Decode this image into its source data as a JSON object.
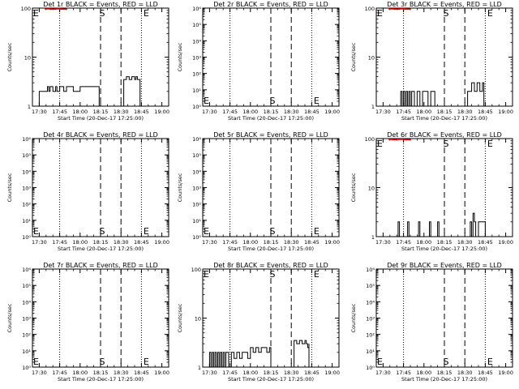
{
  "figure": {
    "x_tick_labels": [
      "17:30",
      "17:45",
      "18:00",
      "18:15",
      "18:30",
      "18:45",
      "19:00"
    ],
    "xlabel": "Start Time (20-Dec-17 17:25:00)",
    "ylabel": "Counts/sec",
    "markers": [
      "S",
      "E"
    ],
    "colors": {
      "events": "#000000",
      "lld": "#ff0000"
    }
  },
  "chart_data": [
    {
      "type": "line",
      "title": "Det 1r BLACK = Events, RED = LLD",
      "ylabel": "Counts/sec",
      "xlabel": "Start Time (20-Dec-17 17:25:00)",
      "y_scale": "log",
      "y_tick_labels": [
        "1",
        "10",
        "100"
      ],
      "ylim": [
        1,
        100
      ],
      "xlim": [
        "17:25",
        "19:05"
      ],
      "x_tick_labels": [
        "17:30",
        "17:45",
        "18:00",
        "18:15",
        "18:30",
        "18:45",
        "19:00"
      ],
      "dotted_lines": [
        "17:45",
        "18:45"
      ],
      "dashed_lines": [
        "18:15",
        "18:30"
      ],
      "markers": {
        "S": "18:15",
        "E": "18:45"
      },
      "series": [
        {
          "color": "black",
          "x": [
            "17:25",
            "17:29",
            "17:30",
            "17:35",
            "17:36",
            "17:37",
            "17:38",
            "17:40",
            "17:42",
            "17:43",
            "17:45",
            "17:48",
            "17:50",
            "17:52",
            "17:55",
            "18:00",
            "18:05",
            "18:10",
            "18:13",
            "18:14",
            "18:15",
            "18:31",
            "18:32",
            "18:34",
            "18:36",
            "18:38",
            "18:40",
            "18:41",
            "18:42",
            "18:44"
          ],
          "y": [
            1,
            1,
            2,
            2,
            2.5,
            2,
            2.5,
            2,
            2.5,
            2,
            2.5,
            2,
            2.5,
            2.5,
            2,
            2.5,
            2.5,
            2.5,
            2.5,
            1,
            1,
            1,
            3.5,
            4,
            3.5,
            4,
            3.5,
            4,
            3.5,
            1
          ]
        },
        {
          "color": "red",
          "x": [
            "17:34",
            "17:38",
            "17:42",
            "17:46",
            "17:50"
          ],
          "y": [
            100,
            95,
            97,
            95,
            100
          ]
        }
      ]
    },
    {
      "type": "line",
      "title": "Det 2r BLACK = Events, RED = LLD",
      "ylabel": "Counts/sec",
      "xlabel": "Start Time (20-Dec-17 17:25:00)",
      "y_scale": "log",
      "y_tick_labels": [
        "10⁰",
        "10¹",
        "10²",
        "10³",
        "10⁴",
        "10⁵",
        "10⁶"
      ],
      "ylim": [
        1,
        1000000
      ],
      "xlim": [
        "17:25",
        "19:05"
      ],
      "x_tick_labels": [
        "17:30",
        "17:45",
        "18:00",
        "18:15",
        "18:30",
        "18:45",
        "19:00"
      ],
      "dotted_lines": [
        "17:45",
        "18:45"
      ],
      "dashed_lines": [
        "18:15",
        "18:30"
      ],
      "markers": {
        "S": "18:15",
        "E": "18:45"
      },
      "series": []
    },
    {
      "type": "line",
      "title": "Det 3r BLACK = Events, RED = LLD",
      "ylabel": "Counts/sec",
      "xlabel": "Start Time (20-Dec-17 17:25:00)",
      "y_scale": "log",
      "y_tick_labels": [
        "1",
        "10",
        "100"
      ],
      "ylim": [
        1,
        100
      ],
      "xlim": [
        "17:25",
        "19:05"
      ],
      "x_tick_labels": [
        "17:30",
        "17:45",
        "18:00",
        "18:15",
        "18:30",
        "18:45",
        "19:00"
      ],
      "dotted_lines": [
        "17:45",
        "18:45"
      ],
      "dashed_lines": [
        "18:15",
        "18:30"
      ],
      "markers": {
        "S": "18:15",
        "E": "18:45"
      },
      "series": [
        {
          "color": "black",
          "x": [
            "17:25",
            "17:43",
            "17:43",
            "17:44",
            "17:45",
            "17:46",
            "17:47",
            "17:48",
            "17:49",
            "17:50",
            "17:51",
            "17:52",
            "17:53",
            "17:55",
            "17:57",
            "17:59",
            "18:01",
            "18:03",
            "18:05",
            "18:07",
            "18:08",
            "18:09",
            "18:31",
            "18:32",
            "18:35",
            "18:37",
            "18:39",
            "18:41",
            "18:43",
            "18:44"
          ],
          "y": [
            1,
            1,
            2,
            1,
            2,
            1,
            2,
            1,
            2,
            1,
            2,
            2,
            1,
            2,
            1,
            2,
            2,
            1,
            2,
            2,
            1,
            1,
            1,
            2,
            3,
            2,
            3,
            2,
            3,
            1
          ]
        },
        {
          "color": "red",
          "x": [
            "17:34",
            "17:38",
            "17:42",
            "17:46",
            "17:50"
          ],
          "y": [
            100,
            95,
            97,
            95,
            100
          ]
        }
      ]
    },
    {
      "type": "line",
      "title": "Det 4r BLACK = Events, RED = LLD",
      "ylabel": "Counts/sec",
      "xlabel": "Start Time (20-Dec-17 17:25:00)",
      "y_scale": "log",
      "y_tick_labels": [
        "10⁰",
        "10¹",
        "10²",
        "10³",
        "10⁴",
        "10⁵",
        "10⁶"
      ],
      "ylim": [
        1,
        1000000
      ],
      "xlim": [
        "17:25",
        "19:05"
      ],
      "x_tick_labels": [
        "17:30",
        "17:45",
        "18:00",
        "18:15",
        "18:30",
        "18:45",
        "19:00"
      ],
      "dotted_lines": [
        "17:45",
        "18:45"
      ],
      "dashed_lines": [
        "18:15",
        "18:30"
      ],
      "markers": {
        "S": "18:15",
        "E": "18:45"
      },
      "series": []
    },
    {
      "type": "line",
      "title": "Det 5r BLACK = Events, RED = LLD",
      "ylabel": "Counts/sec",
      "xlabel": "Start Time (20-Dec-17 17:25:00)",
      "y_scale": "log",
      "y_tick_labels": [
        "10⁰",
        "10¹",
        "10²",
        "10³",
        "10⁴",
        "10⁵",
        "10⁶"
      ],
      "ylim": [
        1,
        1000000
      ],
      "xlim": [
        "17:25",
        "19:05"
      ],
      "x_tick_labels": [
        "17:30",
        "17:45",
        "18:00",
        "18:15",
        "18:30",
        "18:45",
        "19:00"
      ],
      "dotted_lines": [
        "17:45",
        "18:45"
      ],
      "dashed_lines": [
        "18:15",
        "18:30"
      ],
      "markers": {
        "S": "18:15",
        "E": "18:45"
      },
      "series": []
    },
    {
      "type": "line",
      "title": "Det 6r BLACK = Events, RED = LLD",
      "ylabel": "Counts/sec",
      "xlabel": "Start Time (20-Dec-17 17:25:00)",
      "y_scale": "log",
      "y_tick_labels": [
        "1",
        "10",
        "100"
      ],
      "ylim": [
        1,
        100
      ],
      "xlim": [
        "17:25",
        "19:05"
      ],
      "x_tick_labels": [
        "17:30",
        "17:45",
        "18:00",
        "18:15",
        "18:30",
        "18:45",
        "19:00"
      ],
      "dotted_lines": [
        "17:45",
        "18:45"
      ],
      "dashed_lines": [
        "18:15",
        "18:30"
      ],
      "markers": {
        "S": "18:15",
        "E": "18:45"
      },
      "series": [
        {
          "color": "black",
          "x": [
            "17:25",
            "17:41",
            "17:41",
            "17:42",
            "17:47",
            "17:48",
            "17:49",
            "17:55",
            "17:56",
            "17:57",
            "18:03",
            "18:04",
            "18:05",
            "18:09",
            "18:10",
            "18:11",
            "18:33",
            "18:34",
            "18:35",
            "18:36",
            "18:37",
            "18:38",
            "18:40",
            "18:45",
            "18:45"
          ],
          "y": [
            1,
            1,
            2,
            1,
            1,
            2,
            1,
            1,
            2,
            1,
            1,
            2,
            1,
            1,
            2,
            1,
            1,
            2,
            1,
            3,
            2,
            1,
            2,
            2,
            1
          ]
        },
        {
          "color": "red",
          "x": [
            "17:34",
            "17:37",
            "17:40",
            "17:43",
            "17:46",
            "17:50"
          ],
          "y": [
            100,
            95,
            100,
            97,
            95,
            100
          ]
        }
      ]
    },
    {
      "type": "line",
      "title": "Det 7r BLACK = Events, RED = LLD",
      "ylabel": "Counts/sec",
      "xlabel": "Start Time (20-Dec-17 17:25:00)",
      "y_scale": "log",
      "y_tick_labels": [
        "10⁰",
        "10¹",
        "10²",
        "10³",
        "10⁴",
        "10⁵",
        "10⁶"
      ],
      "ylim": [
        1,
        1000000
      ],
      "xlim": [
        "17:25",
        "19:05"
      ],
      "x_tick_labels": [
        "17:30",
        "17:45",
        "18:00",
        "18:15",
        "18:30",
        "18:45",
        "19:00"
      ],
      "dotted_lines": [
        "17:45",
        "18:45"
      ],
      "dashed_lines": [
        "18:15",
        "18:30"
      ],
      "markers": {
        "S": "18:15",
        "E": "18:45"
      },
      "series": []
    },
    {
      "type": "line",
      "title": "Det 8r BLACK = Events, RED = LLD",
      "ylabel": "Counts/sec",
      "xlabel": "Start Time (20-Dec-17 17:25:00)",
      "y_scale": "log",
      "y_tick_labels": [
        "1",
        "10",
        "100"
      ],
      "ylim": [
        1,
        100
      ],
      "xlim": [
        "17:25",
        "19:05"
      ],
      "x_tick_labels": [
        "17:30",
        "17:45",
        "18:00",
        "18:15",
        "18:30",
        "18:45",
        "19:00"
      ],
      "dotted_lines": [
        "17:45",
        "18:45"
      ],
      "dashed_lines": [
        "18:15",
        "18:30"
      ],
      "markers": {
        "S": "18:15",
        "E": "18:45"
      },
      "series": [
        {
          "color": "black",
          "x": [
            "17:25",
            "17:29",
            "17:30",
            "17:31",
            "17:32",
            "17:33",
            "17:34",
            "17:35",
            "17:36",
            "17:37",
            "17:38",
            "17:39",
            "17:40",
            "17:41",
            "17:42",
            "17:44",
            "17:46",
            "17:48",
            "17:50",
            "17:52",
            "17:54",
            "17:56",
            "17:58",
            "18:00",
            "18:02",
            "18:04",
            "18:06",
            "18:08",
            "18:10",
            "18:12",
            "18:14",
            "18:15",
            "18:31",
            "18:32",
            "18:34",
            "18:36",
            "18:38",
            "18:40",
            "18:41",
            "18:42",
            "18:43",
            "18:43"
          ],
          "y": [
            1,
            1,
            2,
            1,
            2,
            1,
            2,
            1,
            2,
            1,
            2,
            1,
            2,
            1,
            2,
            1,
            2,
            1.5,
            2,
            1.5,
            2,
            2,
            1.5,
            2.5,
            2,
            2.5,
            2,
            2.5,
            2.5,
            2,
            2.5,
            1,
            1,
            3.5,
            3,
            3.5,
            3,
            3.5,
            3,
            2.5,
            3,
            1
          ]
        }
      ]
    },
    {
      "type": "line",
      "title": "Det 9r BLACK = Events, RED = LLD",
      "ylabel": "Counts/sec",
      "xlabel": "Start Time (20-Dec-17 17:25:00)",
      "y_scale": "log",
      "y_tick_labels": [
        "10⁰",
        "10¹",
        "10²",
        "10³",
        "10⁴",
        "10⁵",
        "10⁶"
      ],
      "ylim": [
        1,
        1000000
      ],
      "xlim": [
        "17:25",
        "19:05"
      ],
      "x_tick_labels": [
        "17:30",
        "17:45",
        "18:00",
        "18:15",
        "18:30",
        "18:45",
        "19:00"
      ],
      "dotted_lines": [
        "17:45",
        "18:45"
      ],
      "dashed_lines": [
        "18:15",
        "18:30"
      ],
      "markers": {
        "S": "18:15",
        "E": "18:45"
      },
      "series": []
    }
  ]
}
